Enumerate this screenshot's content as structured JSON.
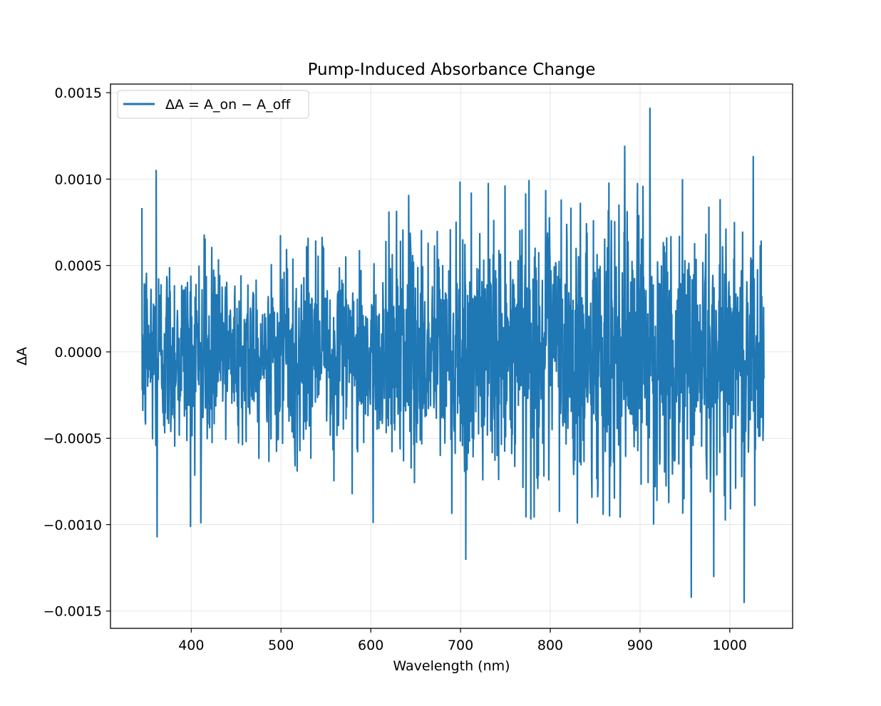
{
  "chart_data": {
    "type": "line",
    "title": "Pump-Induced Absorbance Change",
    "xlabel": "Wavelength (nm)",
    "ylabel": "ΔA",
    "xlim": [
      310,
      1070
    ],
    "ylim": [
      -0.0016,
      0.00155
    ],
    "xticks": [
      400,
      500,
      600,
      700,
      800,
      900,
      1000
    ],
    "xtick_labels": [
      "400",
      "500",
      "600",
      "700",
      "800",
      "900",
      "1000"
    ],
    "yticks": [
      -0.0015,
      -0.001,
      -0.0005,
      0.0,
      0.0005,
      0.001,
      0.0015
    ],
    "ytick_labels": [
      "−0.0015",
      "−0.0010",
      "−0.0005",
      "0.0000",
      "0.0005",
      "0.0010",
      "0.0015"
    ],
    "grid": true,
    "legend_position": "top-left",
    "series": [
      {
        "name": "ΔA = A_on − A_off",
        "color": "#1f77b4",
        "x_range": [
          345,
          1038
        ],
        "n_points": 2048,
        "mean": 0.0,
        "noise_std_by_x": [
          [
            345,
            0.0003
          ],
          [
            500,
            0.00024
          ],
          [
            600,
            0.00027
          ],
          [
            700,
            0.00038
          ],
          [
            800,
            0.00038
          ],
          [
            900,
            0.00042
          ],
          [
            1038,
            0.0004
          ]
        ],
        "extremes": [
          {
            "x": 361,
            "y": 0.00105
          },
          {
            "x": 362,
            "y": -0.00107
          },
          {
            "x": 399,
            "y": -0.00101
          },
          {
            "x": 706,
            "y": -0.0012
          },
          {
            "x": 883,
            "y": 0.00119
          },
          {
            "x": 911,
            "y": 0.00141
          },
          {
            "x": 957,
            "y": -0.00142
          },
          {
            "x": 982,
            "y": -0.0013
          },
          {
            "x": 1016,
            "y": -0.00145
          },
          {
            "x": 1026,
            "y": 0.00113
          }
        ]
      }
    ]
  }
}
